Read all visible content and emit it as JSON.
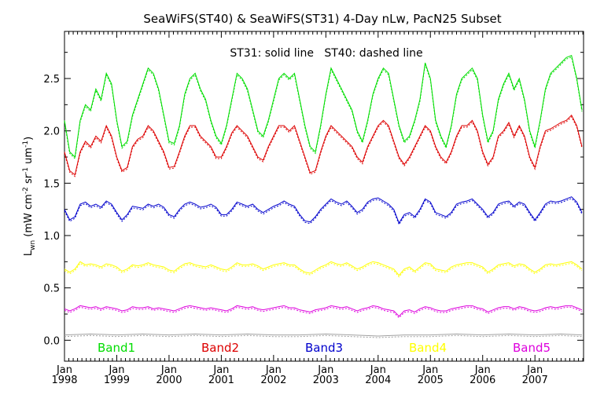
{
  "chart_data": {
    "type": "line",
    "title": "SeaWiFS(ST40) & SeaWiFS(ST31) 4-Day nLw, PacN25 Subset",
    "annotation": "ST31: solid line   ST40: dashed line",
    "ylabel": "L_wn (mW cm^-2 sr^-1 um^-1)",
    "ylabel_parts": {
      "main": "L",
      "sub": "wn",
      "units_prefix": " (mW cm",
      "exp1": "-2",
      "mid": " sr",
      "exp2": "-1",
      "mid2": " um",
      "exp3": "-1",
      "suffix": ")"
    },
    "xlabel": "",
    "xlim": [
      1998.0,
      2007.93
    ],
    "ylim": [
      -0.2,
      2.95
    ],
    "y_ticks": [
      0.0,
      0.5,
      1.0,
      1.5,
      2.0,
      2.5
    ],
    "y_tick_labels": [
      "0.0",
      "0.5",
      "1.0",
      "1.5",
      "2.0",
      "2.5"
    ],
    "x_ticks": [
      1998,
      1999,
      2000,
      2001,
      2002,
      2003,
      2004,
      2005,
      2006,
      2007
    ],
    "x_tick_labels_top": [
      "Jan",
      "Jan",
      "Jan",
      "Jan",
      "Jan",
      "Jan",
      "Jan",
      "Jan",
      "Jan",
      "Jan"
    ],
    "x_tick_labels_bottom": [
      "1998",
      "1999",
      "2000",
      "2001",
      "2002",
      "2003",
      "2004",
      "2005",
      "2006",
      "2007"
    ],
    "series": [
      {
        "name": "Band1",
        "color": "#00dd00",
        "x": [
          1998.0,
          1998.1,
          1998.2,
          1998.3,
          1998.4,
          1998.5,
          1998.6,
          1998.7,
          1998.8,
          1998.9,
          1999.0,
          1999.1,
          1999.2,
          1999.3,
          1999.4,
          1999.5,
          1999.6,
          1999.7,
          1999.8,
          1999.9,
          2000.0,
          2000.1,
          2000.2,
          2000.3,
          2000.4,
          2000.5,
          2000.6,
          2000.7,
          2000.8,
          2000.9,
          2001.0,
          2001.1,
          2001.2,
          2001.3,
          2001.4,
          2001.5,
          2001.6,
          2001.7,
          2001.8,
          2001.9,
          2002.0,
          2002.1,
          2002.2,
          2002.3,
          2002.4,
          2002.5,
          2002.6,
          2002.7,
          2002.8,
          2002.9,
          2003.0,
          2003.1,
          2003.2,
          2003.3,
          2003.4,
          2003.5,
          2003.6,
          2003.7,
          2003.8,
          2003.9,
          2004.0,
          2004.1,
          2004.2,
          2004.3,
          2004.4,
          2004.5,
          2004.6,
          2004.7,
          2004.8,
          2004.9,
          2005.0,
          2005.1,
          2005.2,
          2005.3,
          2005.4,
          2005.5,
          2005.6,
          2005.7,
          2005.8,
          2005.9,
          2006.0,
          2006.1,
          2006.2,
          2006.3,
          2006.4,
          2006.5,
          2006.6,
          2006.7,
          2006.8,
          2006.9,
          2007.0,
          2007.1,
          2007.2,
          2007.3,
          2007.4,
          2007.5,
          2007.6,
          2007.7,
          2007.8,
          2007.9
        ],
        "y": [
          2.1,
          1.8,
          1.75,
          2.1,
          2.25,
          2.2,
          2.4,
          2.3,
          2.55,
          2.45,
          2.1,
          1.85,
          1.9,
          2.15,
          2.3,
          2.45,
          2.6,
          2.55,
          2.4,
          2.15,
          1.9,
          1.88,
          2.05,
          2.35,
          2.5,
          2.55,
          2.4,
          2.3,
          2.1,
          1.95,
          1.88,
          2.05,
          2.3,
          2.55,
          2.5,
          2.4,
          2.2,
          2.0,
          1.95,
          2.1,
          2.3,
          2.5,
          2.55,
          2.5,
          2.55,
          2.3,
          2.05,
          1.85,
          1.8,
          2.05,
          2.35,
          2.6,
          2.5,
          2.4,
          2.3,
          2.2,
          2.0,
          1.9,
          2.1,
          2.35,
          2.5,
          2.6,
          2.55,
          2.3,
          2.05,
          1.9,
          1.95,
          2.1,
          2.3,
          2.65,
          2.5,
          2.1,
          1.95,
          1.85,
          2.05,
          2.35,
          2.5,
          2.55,
          2.6,
          2.5,
          2.15,
          1.9,
          2.0,
          2.3,
          2.45,
          2.55,
          2.4,
          2.5,
          2.3,
          2.0,
          1.85,
          2.1,
          2.4,
          2.55,
          2.6,
          2.65,
          2.7,
          2.72,
          2.5,
          2.2
        ]
      },
      {
        "name": "Band2",
        "color": "#dd0000",
        "x": [
          1998.0,
          1998.1,
          1998.2,
          1998.3,
          1998.4,
          1998.5,
          1998.6,
          1998.7,
          1998.8,
          1998.9,
          1999.0,
          1999.1,
          1999.2,
          1999.3,
          1999.4,
          1999.5,
          1999.6,
          1999.7,
          1999.8,
          1999.9,
          2000.0,
          2000.1,
          2000.2,
          2000.3,
          2000.4,
          2000.5,
          2000.6,
          2000.7,
          2000.8,
          2000.9,
          2001.0,
          2001.1,
          2001.2,
          2001.3,
          2001.4,
          2001.5,
          2001.6,
          2001.7,
          2001.8,
          2001.9,
          2002.0,
          2002.1,
          2002.2,
          2002.3,
          2002.4,
          2002.5,
          2002.6,
          2002.7,
          2002.8,
          2002.9,
          2003.0,
          2003.1,
          2003.2,
          2003.3,
          2003.4,
          2003.5,
          2003.6,
          2003.7,
          2003.8,
          2003.9,
          2004.0,
          2004.1,
          2004.2,
          2004.3,
          2004.4,
          2004.5,
          2004.6,
          2004.7,
          2004.8,
          2004.9,
          2005.0,
          2005.1,
          2005.2,
          2005.3,
          2005.4,
          2005.5,
          2005.6,
          2005.7,
          2005.8,
          2005.9,
          2006.0,
          2006.1,
          2006.2,
          2006.3,
          2006.4,
          2006.5,
          2006.6,
          2006.7,
          2006.8,
          2006.9,
          2007.0,
          2007.1,
          2007.2,
          2007.3,
          2007.4,
          2007.5,
          2007.6,
          2007.7,
          2007.8,
          2007.9
        ],
        "y": [
          1.8,
          1.62,
          1.58,
          1.8,
          1.9,
          1.85,
          1.95,
          1.9,
          2.05,
          1.95,
          1.75,
          1.62,
          1.65,
          1.85,
          1.92,
          1.95,
          2.05,
          2.0,
          1.9,
          1.8,
          1.65,
          1.66,
          1.8,
          1.95,
          2.05,
          2.05,
          1.95,
          1.9,
          1.85,
          1.75,
          1.75,
          1.85,
          1.98,
          2.05,
          2.0,
          1.95,
          1.85,
          1.75,
          1.72,
          1.85,
          1.95,
          2.05,
          2.05,
          2.0,
          2.05,
          1.9,
          1.75,
          1.6,
          1.62,
          1.8,
          1.95,
          2.05,
          2.0,
          1.95,
          1.9,
          1.85,
          1.75,
          1.7,
          1.85,
          1.95,
          2.05,
          2.1,
          2.05,
          1.9,
          1.75,
          1.68,
          1.75,
          1.85,
          1.95,
          2.05,
          2.0,
          1.85,
          1.75,
          1.7,
          1.8,
          1.95,
          2.05,
          2.05,
          2.1,
          2.0,
          1.8,
          1.68,
          1.75,
          1.95,
          2.0,
          2.08,
          1.95,
          2.05,
          1.95,
          1.75,
          1.65,
          1.85,
          2.0,
          2.02,
          2.05,
          2.08,
          2.1,
          2.15,
          2.05,
          1.85
        ]
      },
      {
        "name": "Band3",
        "color": "#0000cc",
        "x": [
          1998.0,
          1998.1,
          1998.2,
          1998.3,
          1998.4,
          1998.5,
          1998.6,
          1998.7,
          1998.8,
          1998.9,
          1999.0,
          1999.1,
          1999.2,
          1999.3,
          1999.4,
          1999.5,
          1999.6,
          1999.7,
          1999.8,
          1999.9,
          2000.0,
          2000.1,
          2000.2,
          2000.3,
          2000.4,
          2000.5,
          2000.6,
          2000.7,
          2000.8,
          2000.9,
          2001.0,
          2001.1,
          2001.2,
          2001.3,
          2001.4,
          2001.5,
          2001.6,
          2001.7,
          2001.8,
          2001.9,
          2002.0,
          2002.1,
          2002.2,
          2002.3,
          2002.4,
          2002.5,
          2002.6,
          2002.7,
          2002.8,
          2002.9,
          2003.0,
          2003.1,
          2003.2,
          2003.3,
          2003.4,
          2003.5,
          2003.6,
          2003.7,
          2003.8,
          2003.9,
          2004.0,
          2004.1,
          2004.2,
          2004.3,
          2004.4,
          2004.5,
          2004.6,
          2004.7,
          2004.8,
          2004.9,
          2005.0,
          2005.1,
          2005.2,
          2005.3,
          2005.4,
          2005.5,
          2005.6,
          2005.7,
          2005.8,
          2005.9,
          2006.0,
          2006.1,
          2006.2,
          2006.3,
          2006.4,
          2006.5,
          2006.6,
          2006.7,
          2006.8,
          2006.9,
          2007.0,
          2007.1,
          2007.2,
          2007.3,
          2007.4,
          2007.5,
          2007.6,
          2007.7,
          2007.8,
          2007.9
        ],
        "y": [
          1.25,
          1.15,
          1.18,
          1.3,
          1.32,
          1.28,
          1.3,
          1.27,
          1.33,
          1.3,
          1.22,
          1.15,
          1.2,
          1.28,
          1.27,
          1.26,
          1.3,
          1.28,
          1.3,
          1.27,
          1.2,
          1.18,
          1.25,
          1.3,
          1.32,
          1.3,
          1.27,
          1.28,
          1.3,
          1.27,
          1.2,
          1.2,
          1.25,
          1.32,
          1.3,
          1.28,
          1.3,
          1.25,
          1.22,
          1.25,
          1.28,
          1.3,
          1.33,
          1.3,
          1.28,
          1.2,
          1.14,
          1.13,
          1.18,
          1.25,
          1.3,
          1.35,
          1.32,
          1.3,
          1.33,
          1.28,
          1.22,
          1.25,
          1.32,
          1.35,
          1.36,
          1.33,
          1.3,
          1.25,
          1.12,
          1.2,
          1.22,
          1.18,
          1.25,
          1.35,
          1.32,
          1.22,
          1.2,
          1.18,
          1.22,
          1.3,
          1.32,
          1.33,
          1.35,
          1.3,
          1.25,
          1.18,
          1.22,
          1.3,
          1.32,
          1.33,
          1.28,
          1.32,
          1.3,
          1.22,
          1.15,
          1.22,
          1.3,
          1.33,
          1.32,
          1.33,
          1.35,
          1.37,
          1.32,
          1.22
        ]
      },
      {
        "name": "Band4",
        "color": "#ffff00",
        "x": [
          1998.0,
          1998.1,
          1998.2,
          1998.3,
          1998.4,
          1998.5,
          1998.6,
          1998.7,
          1998.8,
          1998.9,
          1999.0,
          1999.1,
          1999.2,
          1999.3,
          1999.4,
          1999.5,
          1999.6,
          1999.7,
          1999.8,
          1999.9,
          2000.0,
          2000.1,
          2000.2,
          2000.3,
          2000.4,
          2000.5,
          2000.6,
          2000.7,
          2000.8,
          2000.9,
          2001.0,
          2001.1,
          2001.2,
          2001.3,
          2001.4,
          2001.5,
          2001.6,
          2001.7,
          2001.8,
          2001.9,
          2002.0,
          2002.1,
          2002.2,
          2002.3,
          2002.4,
          2002.5,
          2002.6,
          2002.7,
          2002.8,
          2002.9,
          2003.0,
          2003.1,
          2003.2,
          2003.3,
          2003.4,
          2003.5,
          2003.6,
          2003.7,
          2003.8,
          2003.9,
          2004.0,
          2004.1,
          2004.2,
          2004.3,
          2004.4,
          2004.5,
          2004.6,
          2004.7,
          2004.8,
          2004.9,
          2005.0,
          2005.1,
          2005.2,
          2005.3,
          2005.4,
          2005.5,
          2005.6,
          2005.7,
          2005.8,
          2005.9,
          2006.0,
          2006.1,
          2006.2,
          2006.3,
          2006.4,
          2006.5,
          2006.6,
          2006.7,
          2006.8,
          2006.9,
          2007.0,
          2007.1,
          2007.2,
          2007.3,
          2007.4,
          2007.5,
          2007.6,
          2007.7,
          2007.8,
          2007.9
        ],
        "y": [
          0.68,
          0.65,
          0.68,
          0.75,
          0.72,
          0.73,
          0.72,
          0.7,
          0.73,
          0.72,
          0.7,
          0.66,
          0.68,
          0.72,
          0.71,
          0.72,
          0.74,
          0.72,
          0.71,
          0.7,
          0.67,
          0.66,
          0.7,
          0.73,
          0.74,
          0.72,
          0.71,
          0.7,
          0.72,
          0.7,
          0.68,
          0.67,
          0.7,
          0.74,
          0.72,
          0.72,
          0.73,
          0.71,
          0.68,
          0.7,
          0.72,
          0.73,
          0.74,
          0.72,
          0.72,
          0.68,
          0.65,
          0.64,
          0.67,
          0.7,
          0.72,
          0.75,
          0.73,
          0.72,
          0.74,
          0.71,
          0.68,
          0.7,
          0.73,
          0.75,
          0.74,
          0.72,
          0.7,
          0.68,
          0.62,
          0.68,
          0.7,
          0.66,
          0.7,
          0.74,
          0.73,
          0.68,
          0.67,
          0.66,
          0.7,
          0.72,
          0.73,
          0.74,
          0.74,
          0.72,
          0.7,
          0.65,
          0.68,
          0.72,
          0.73,
          0.74,
          0.71,
          0.73,
          0.72,
          0.68,
          0.65,
          0.68,
          0.72,
          0.73,
          0.72,
          0.73,
          0.74,
          0.75,
          0.72,
          0.68
        ]
      },
      {
        "name": "Band5",
        "color": "#dd00dd",
        "x": [
          1998.0,
          1998.1,
          1998.2,
          1998.3,
          1998.4,
          1998.5,
          1998.6,
          1998.7,
          1998.8,
          1998.9,
          1999.0,
          1999.1,
          1999.2,
          1999.3,
          1999.4,
          1999.5,
          1999.6,
          1999.7,
          1999.8,
          1999.9,
          2000.0,
          2000.1,
          2000.2,
          2000.3,
          2000.4,
          2000.5,
          2000.6,
          2000.7,
          2000.8,
          2000.9,
          2001.0,
          2001.1,
          2001.2,
          2001.3,
          2001.4,
          2001.5,
          2001.6,
          2001.7,
          2001.8,
          2001.9,
          2002.0,
          2002.1,
          2002.2,
          2002.3,
          2002.4,
          2002.5,
          2002.6,
          2002.7,
          2002.8,
          2002.9,
          2003.0,
          2003.1,
          2003.2,
          2003.3,
          2003.4,
          2003.5,
          2003.6,
          2003.7,
          2003.8,
          2003.9,
          2004.0,
          2004.1,
          2004.2,
          2004.3,
          2004.4,
          2004.5,
          2004.6,
          2004.7,
          2004.8,
          2004.9,
          2005.0,
          2005.1,
          2005.2,
          2005.3,
          2005.4,
          2005.5,
          2005.6,
          2005.7,
          2005.8,
          2005.9,
          2006.0,
          2006.1,
          2006.2,
          2006.3,
          2006.4,
          2006.5,
          2006.6,
          2006.7,
          2006.8,
          2006.9,
          2007.0,
          2007.1,
          2007.2,
          2007.3,
          2007.4,
          2007.5,
          2007.6,
          2007.7,
          2007.8,
          2007.9
        ],
        "y": [
          0.3,
          0.28,
          0.3,
          0.33,
          0.32,
          0.31,
          0.32,
          0.3,
          0.32,
          0.31,
          0.3,
          0.28,
          0.29,
          0.32,
          0.31,
          0.31,
          0.32,
          0.3,
          0.31,
          0.3,
          0.29,
          0.28,
          0.3,
          0.32,
          0.33,
          0.32,
          0.31,
          0.3,
          0.31,
          0.3,
          0.29,
          0.28,
          0.3,
          0.33,
          0.32,
          0.31,
          0.32,
          0.3,
          0.29,
          0.3,
          0.31,
          0.32,
          0.33,
          0.31,
          0.31,
          0.29,
          0.28,
          0.27,
          0.29,
          0.3,
          0.31,
          0.33,
          0.32,
          0.31,
          0.32,
          0.3,
          0.28,
          0.3,
          0.31,
          0.33,
          0.32,
          0.3,
          0.29,
          0.28,
          0.23,
          0.28,
          0.29,
          0.27,
          0.3,
          0.32,
          0.31,
          0.29,
          0.28,
          0.28,
          0.3,
          0.31,
          0.32,
          0.33,
          0.33,
          0.31,
          0.3,
          0.27,
          0.29,
          0.31,
          0.32,
          0.32,
          0.3,
          0.32,
          0.31,
          0.29,
          0.28,
          0.29,
          0.31,
          0.32,
          0.31,
          0.32,
          0.33,
          0.33,
          0.31,
          0.29
        ]
      },
      {
        "name": "",
        "color": "#a0a0a0",
        "x": [
          1998.0,
          1998.5,
          1999.0,
          1999.5,
          2000.0,
          2000.5,
          2001.0,
          2001.5,
          2002.0,
          2002.5,
          2003.0,
          2003.5,
          2004.0,
          2004.5,
          2005.0,
          2005.5,
          2006.0,
          2006.5,
          2007.0,
          2007.5,
          2007.9
        ],
        "y": [
          0.05,
          0.06,
          0.05,
          0.06,
          0.05,
          0.06,
          0.05,
          0.06,
          0.05,
          0.05,
          0.06,
          0.05,
          0.04,
          0.05,
          0.05,
          0.06,
          0.05,
          0.06,
          0.05,
          0.06,
          0.05
        ]
      }
    ]
  }
}
